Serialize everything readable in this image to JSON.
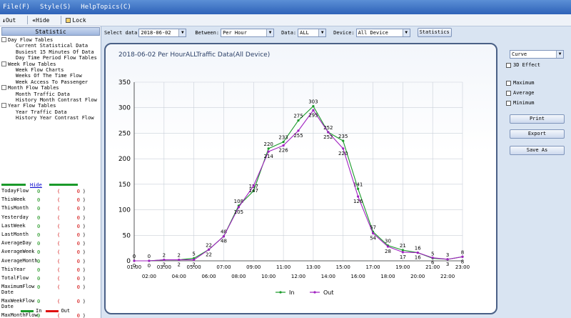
{
  "menu": [
    "File(F)",
    "Style(S)",
    "HelpTopics(C)"
  ],
  "toolbar": {
    "out": "Out",
    "hide": "Hide",
    "lock": "Lock"
  },
  "left": {
    "statistic_button": "Statistic",
    "tree": [
      {
        "label": "Day Flow Tables",
        "level": 0
      },
      {
        "label": "Current Statistical Data",
        "level": 1
      },
      {
        "label": "Busiest 15 Minutes Of Data",
        "level": 1
      },
      {
        "label": "Day Time Period Flow Tables",
        "level": 1
      },
      {
        "label": "Week Flow Tables",
        "level": 0
      },
      {
        "label": "Week Flow Charts",
        "level": 1
      },
      {
        "label": "Weeks Of The Time Flow",
        "level": 1
      },
      {
        "label": "Week Access To Passenger",
        "level": 1
      },
      {
        "label": "Month Flow Tables",
        "level": 0
      },
      {
        "label": "Month Traffic Data",
        "level": 1
      },
      {
        "label": "History Month Contrast Flow",
        "level": 1
      },
      {
        "label": "Year Flow Tables",
        "level": 0
      },
      {
        "label": "Year Traffic Data",
        "level": 1
      },
      {
        "label": "History Year Contrast Flow",
        "level": 1
      }
    ],
    "hide_link": "Hide",
    "flow_rows": [
      {
        "label": "TodayFlow",
        "value": "0",
        "paren": "0"
      },
      {
        "label": "ThisWeek",
        "value": "0",
        "paren": "0"
      },
      {
        "label": "ThisMonth",
        "value": "0",
        "paren": "0"
      },
      {
        "label": "Yesterday",
        "value": "0",
        "paren": "0"
      },
      {
        "label": "LastWeek",
        "value": "0",
        "paren": "0"
      },
      {
        "label": "LastMonth",
        "value": "0",
        "paren": "0"
      },
      {
        "label": "AverageDay",
        "value": "0",
        "paren": "0"
      },
      {
        "label": "AverageWeek",
        "value": "0",
        "paren": "0"
      },
      {
        "label": "AverageMonth",
        "value": "0",
        "paren": "0"
      },
      {
        "label": "ThisYear",
        "value": "0",
        "paren": "0"
      },
      {
        "label": "TotalFlow",
        "value": "0",
        "paren": "0"
      },
      {
        "label": "MaximumFlow Date",
        "value": "0",
        "paren": "0"
      },
      {
        "label": "MaxWeekFlow Date",
        "value": "0",
        "paren": "0"
      },
      {
        "label": "MaxMonthFlow Date",
        "value": "0",
        "paren": "0"
      }
    ],
    "legend_in": "In",
    "legend_out": "Out"
  },
  "filters": {
    "select_data_label": "Select data",
    "date": "2018-06-02",
    "between_label": "Between:",
    "between": "Per Hour",
    "data_label": "Data:",
    "data": "ALL",
    "device_label": "Device:",
    "device": "All Device",
    "statistics_button": "Statistics"
  },
  "right": {
    "chart_type": "Curve",
    "effect_3d": "3D Effect",
    "maximum": "Maximum",
    "average": "Average",
    "minimum": "Minimum",
    "print": "Print",
    "export": "Export",
    "save_as": "Save As"
  },
  "colors": {
    "in": "#1a9a2a",
    "out": "#a020c0"
  },
  "chart_data": {
    "type": "line",
    "title": "2018-06-02 Per HourALLTraffic Data(All Device)",
    "ylim": [
      0,
      350
    ],
    "yticks": [
      0,
      50,
      100,
      150,
      200,
      250,
      300,
      350
    ],
    "x": [
      "01:00",
      "02:00",
      "03:00",
      "04:00",
      "05:00",
      "06:00",
      "07:00",
      "08:00",
      "09:00",
      "10:00",
      "11:00",
      "12:00",
      "13:00",
      "14:00",
      "15:00",
      "16:00",
      "17:00",
      "18:00",
      "19:00",
      "20:00",
      "21:00",
      "22:00",
      "23:00"
    ],
    "series": [
      {
        "name": "In",
        "values": [
          0,
          0,
          2,
          2,
          5,
          22,
          48,
          108,
          137,
          220,
          233,
          275,
          303,
          252,
          235,
          141,
          57,
          30,
          21,
          16,
          5,
          3,
          8
        ]
      },
      {
        "name": "Out",
        "values": [
          0,
          0,
          2,
          2,
          2,
          22,
          48,
          105,
          147,
          214,
          226,
          255,
          295,
          252,
          220,
          126,
          54,
          28,
          17,
          16,
          6,
          3,
          8
        ]
      }
    ]
  }
}
